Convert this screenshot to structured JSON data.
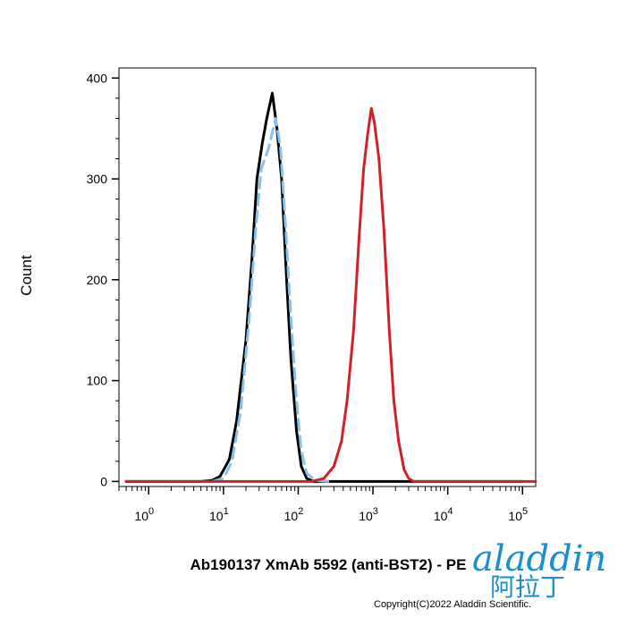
{
  "chart_data": {
    "type": "line",
    "xlabel": "Ab190137 XmAb 5592 (anti-BST2) - PE",
    "ylabel": "Count",
    "x_scale": "log",
    "xlim": [
      0.4,
      150000
    ],
    "ylim": [
      -5,
      410
    ],
    "y_ticks": [
      0,
      100,
      200,
      300,
      400
    ],
    "x_ticks": [
      {
        "base": "10",
        "exp": "0"
      },
      {
        "base": "10",
        "exp": "1"
      },
      {
        "base": "10",
        "exp": "2"
      },
      {
        "base": "10",
        "exp": "3"
      },
      {
        "base": "10",
        "exp": "4"
      },
      {
        "base": "10",
        "exp": "5"
      }
    ],
    "series": [
      {
        "color": "#000000",
        "style": "solid",
        "points": [
          [
            0.5,
            0
          ],
          [
            5,
            0
          ],
          [
            7,
            1
          ],
          [
            9,
            5
          ],
          [
            12,
            22
          ],
          [
            15,
            60
          ],
          [
            20,
            140
          ],
          [
            24,
            220
          ],
          [
            28,
            300
          ],
          [
            33,
            335
          ],
          [
            38,
            360
          ],
          [
            45,
            385
          ],
          [
            52,
            350
          ],
          [
            60,
            300
          ],
          [
            70,
            200
          ],
          [
            80,
            120
          ],
          [
            95,
            50
          ],
          [
            110,
            15
          ],
          [
            130,
            3
          ],
          [
            160,
            0
          ],
          [
            100000,
            0
          ]
        ]
      },
      {
        "color": "#85c1e9",
        "style": "dashed",
        "points": [
          [
            7,
            0
          ],
          [
            10,
            3
          ],
          [
            13,
            20
          ],
          [
            17,
            70
          ],
          [
            22,
            160
          ],
          [
            27,
            250
          ],
          [
            32,
            310
          ],
          [
            40,
            330
          ],
          [
            50,
            360
          ],
          [
            58,
            330
          ],
          [
            68,
            250
          ],
          [
            80,
            160
          ],
          [
            95,
            80
          ],
          [
            110,
            30
          ],
          [
            130,
            8
          ],
          [
            170,
            1
          ],
          [
            250,
            0
          ]
        ]
      },
      {
        "color": "#d0202a",
        "style": "solid",
        "points": [
          [
            0.5,
            0
          ],
          [
            150,
            0
          ],
          [
            220,
            3
          ],
          [
            300,
            15
          ],
          [
            380,
            40
          ],
          [
            450,
            80
          ],
          [
            550,
            150
          ],
          [
            650,
            240
          ],
          [
            750,
            310
          ],
          [
            850,
            345
          ],
          [
            950,
            370
          ],
          [
            1050,
            355
          ],
          [
            1200,
            320
          ],
          [
            1400,
            250
          ],
          [
            1650,
            150
          ],
          [
            1900,
            80
          ],
          [
            2200,
            40
          ],
          [
            2600,
            12
          ],
          [
            3000,
            3
          ],
          [
            3500,
            0
          ],
          [
            150000,
            0
          ]
        ]
      }
    ]
  },
  "footer": {
    "copyright": "Copyright(C)2022 Aladdin Scientific.",
    "logo_en": "aladdin",
    "logo_cn": "阿拉丁",
    "logo_mark": "®"
  }
}
